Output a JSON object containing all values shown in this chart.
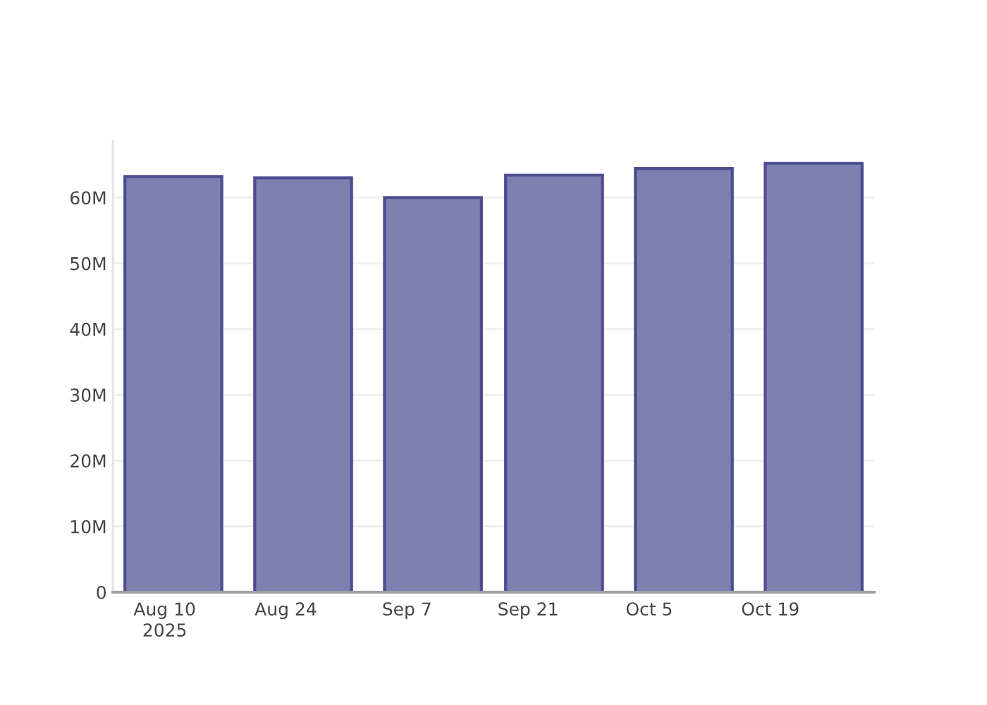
{
  "chart_data": {
    "type": "bar",
    "x": [
      "2025-08-11",
      "2025-08-26",
      "2025-09-10",
      "2025-09-24",
      "2025-10-09",
      "2025-10-24"
    ],
    "values": [
      63200000,
      63000000,
      60000000,
      63400000,
      64400000,
      65200000
    ],
    "color": "#7f7fb0",
    "xlim": [
      "2025-08-04",
      "2025-10-31"
    ],
    "xticks": [
      {
        "value": "2025-08-10",
        "label": "Aug 10\n2025"
      },
      {
        "value": "2025-08-24",
        "label": "Aug 24"
      },
      {
        "value": "2025-09-07",
        "label": "Sep 7"
      },
      {
        "value": "2025-09-21",
        "label": "Sep 21"
      },
      {
        "value": "2025-10-05",
        "label": "Oct 5"
      },
      {
        "value": "2025-10-19",
        "label": "Oct 19"
      }
    ],
    "ylim": [
      0,
      68600000
    ],
    "yticks": [
      0,
      {
        "value": 10000000,
        "label": "10M"
      },
      {
        "value": 20000000,
        "label": "20M"
      },
      {
        "value": 30000000,
        "label": "30M"
      },
      {
        "value": 40000000,
        "label": "40M"
      },
      {
        "value": 50000000,
        "label": "50M"
      },
      {
        "value": 60000000,
        "label": "60M"
      }
    ],
    "grid": "y"
  }
}
